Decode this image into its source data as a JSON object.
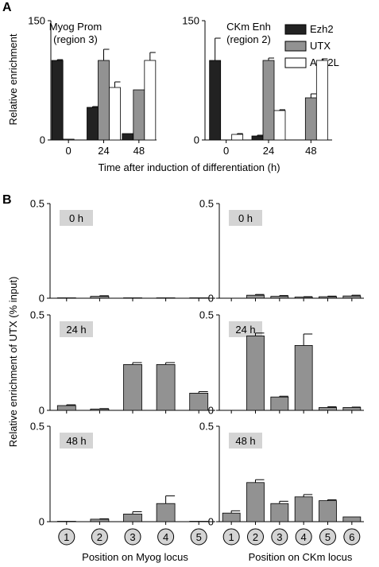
{
  "colors": {
    "ezh2": "#222222",
    "utx": "#929292",
    "ash2l": "#ffffff",
    "stage_label_bg": "#d4d4d4"
  },
  "panel_a": {
    "letter": "A",
    "ylabel": "Relative enrichment",
    "xlabel": "Time after induction of differentiation (h)",
    "legend": [
      "Ezh2",
      "UTX",
      "Ash2L"
    ],
    "charts": [
      {
        "title_line1": "Myog Prom",
        "title_line2": "(region 3)"
      },
      {
        "title_line1": "CKm Enh",
        "title_line2": "(region 2)"
      }
    ]
  },
  "panel_b": {
    "letter": "B",
    "ylabel": "Relative enrichment of UTX (% input)",
    "left_xlabel": "Position on Myog locus",
    "right_xlabel": "Position on CKm locus",
    "stages": [
      "0 h",
      "24 h",
      "48 h"
    ],
    "left_positions": [
      "1",
      "2",
      "3",
      "4",
      "5"
    ],
    "right_positions": [
      "1",
      "2",
      "3",
      "4",
      "5",
      "6"
    ]
  },
  "chart_data": [
    {
      "type": "bar",
      "title": "Myog Prom (region 3)",
      "xlabel": "Time after induction of differentiation (h)",
      "ylabel": "Relative enrichment",
      "categories": [
        "0",
        "24",
        "48"
      ],
      "ylim": [
        0,
        150
      ],
      "yticks": [
        0,
        150
      ],
      "series": [
        {
          "name": "Ezh2",
          "values": [
            100,
            41,
            8
          ],
          "errors": [
            1,
            1,
            0
          ]
        },
        {
          "name": "UTX",
          "values": [
            1,
            100,
            63
          ],
          "errors": [
            0,
            14,
            0
          ]
        },
        {
          "name": "Ash2L",
          "values": [
            0,
            66,
            100
          ],
          "errors": [
            0,
            7,
            10
          ]
        }
      ],
      "legend": "top-right"
    },
    {
      "type": "bar",
      "title": "CKm Enh (region 2)",
      "xlabel": "Time after induction of differentiation (h)",
      "ylabel": "Relative enrichment",
      "categories": [
        "0",
        "24",
        "48"
      ],
      "ylim": [
        0,
        150
      ],
      "yticks": [
        0,
        150
      ],
      "series": [
        {
          "name": "Ezh2",
          "values": [
            100,
            5,
            0
          ],
          "errors": [
            28,
            1,
            0
          ]
        },
        {
          "name": "UTX",
          "values": [
            0,
            100,
            53
          ],
          "errors": [
            0,
            3,
            5
          ]
        },
        {
          "name": "Ash2L",
          "values": [
            7,
            37,
            100
          ],
          "errors": [
            1,
            1,
            2
          ]
        }
      ]
    },
    {
      "type": "bar",
      "title": "0 h",
      "xlabel": "Position on Myog locus",
      "ylabel": "Relative enrichment of UTX (% input)",
      "categories": [
        "1",
        "2",
        "3",
        "4",
        "5"
      ],
      "ylim": [
        0,
        0.5
      ],
      "yticks": [
        0,
        0.5
      ],
      "values": [
        0.002,
        0.01,
        0.002,
        0.002,
        0.002
      ],
      "errors": [
        0,
        0.003,
        0,
        0,
        0
      ]
    },
    {
      "type": "bar",
      "title": "0 h",
      "xlabel": "Position on CKm locus",
      "ylabel": "Relative enrichment of UTX (% input)",
      "categories": [
        "1",
        "2",
        "3",
        "4",
        "5",
        "6"
      ],
      "ylim": [
        0,
        0.5
      ],
      "yticks": [
        0,
        0.5
      ],
      "values": [
        0,
        0.016,
        0.01,
        0.006,
        0.008,
        0.012
      ],
      "errors": [
        0,
        0.004,
        0.004,
        0.002,
        0.003,
        0.004
      ]
    },
    {
      "type": "bar",
      "title": "24 h",
      "xlabel": "Position on Myog locus",
      "ylabel": "Relative enrichment of UTX (% input)",
      "categories": [
        "1",
        "2",
        "3",
        "4",
        "5"
      ],
      "ylim": [
        0,
        0.5
      ],
      "yticks": [
        0,
        0.5
      ],
      "values": [
        0.025,
        0.007,
        0.24,
        0.24,
        0.09
      ],
      "errors": [
        0.004,
        0.002,
        0.01,
        0.01,
        0.008
      ]
    },
    {
      "type": "bar",
      "title": "24 h",
      "xlabel": "Position on CKm locus",
      "ylabel": "Relative enrichment of UTX (% input)",
      "categories": [
        "1",
        "2",
        "3",
        "4",
        "5",
        "6"
      ],
      "ylim": [
        0,
        0.5
      ],
      "yticks": [
        0,
        0.5
      ],
      "values": [
        0,
        0.39,
        0.07,
        0.34,
        0.015,
        0.015
      ],
      "errors": [
        0,
        0.015,
        0.004,
        0.06,
        0.004,
        0.002
      ]
    },
    {
      "type": "bar",
      "title": "48 h",
      "xlabel": "Position on Myog locus",
      "ylabel": "Relative enrichment of UTX (% input)",
      "categories": [
        "1",
        "2",
        "3",
        "4",
        "5"
      ],
      "ylim": [
        0,
        0.5
      ],
      "yticks": [
        0,
        0.5
      ],
      "values": [
        0.002,
        0.013,
        0.04,
        0.095,
        0.002
      ],
      "errors": [
        0,
        0.002,
        0.012,
        0.04,
        0
      ]
    },
    {
      "type": "bar",
      "title": "48 h",
      "xlabel": "Position on CKm locus",
      "ylabel": "Relative enrichment of UTX (% input)",
      "categories": [
        "1",
        "2",
        "3",
        "4",
        "5",
        "6"
      ],
      "ylim": [
        0,
        0.5
      ],
      "yticks": [
        0,
        0.5
      ],
      "values": [
        0.045,
        0.205,
        0.095,
        0.13,
        0.11,
        0.025
      ],
      "errors": [
        0.012,
        0.015,
        0.012,
        0.012,
        0.005,
        0
      ]
    }
  ]
}
